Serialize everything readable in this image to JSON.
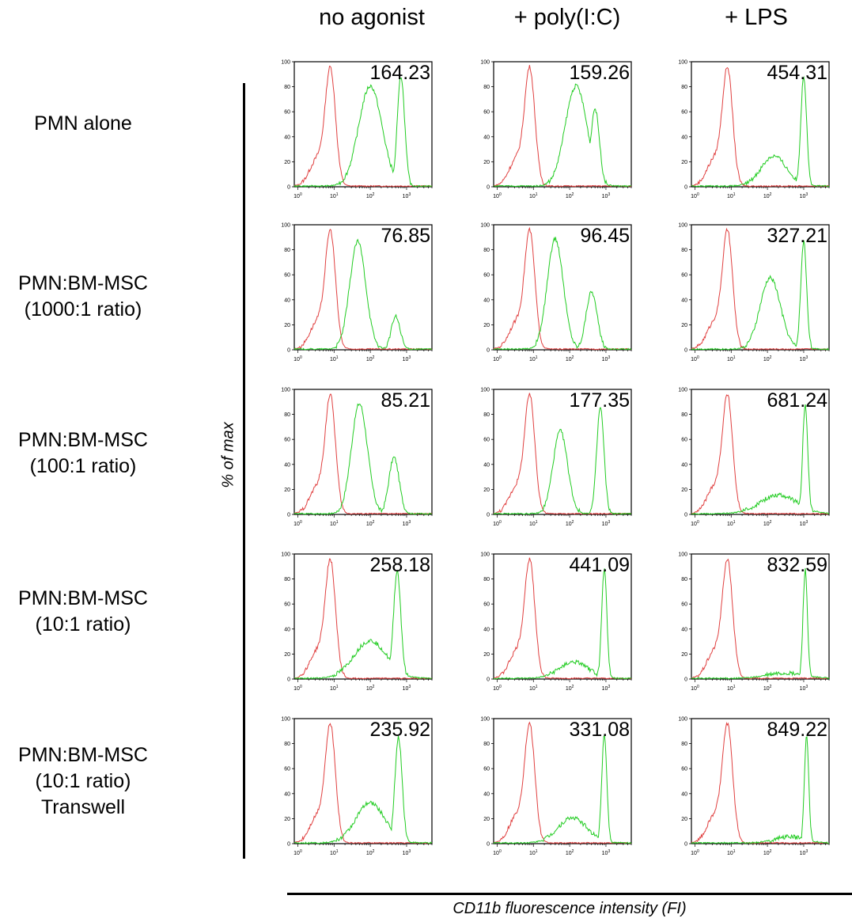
{
  "columns": [
    "no agonist",
    "+ poly(I:C)",
    "+ LPS"
  ],
  "rows": [
    [
      "PMN alone"
    ],
    [
      "PMN:BM-MSC",
      "(1000:1 ratio)"
    ],
    [
      "PMN:BM-MSC",
      "(100:1 ratio)"
    ],
    [
      "PMN:BM-MSC",
      "(10:1 ratio)"
    ],
    [
      "PMN:BM-MSC",
      "(10:1 ratio)",
      "Transwell"
    ]
  ],
  "y_axis_label": "% of max",
  "x_axis_label": "CD11b fluorescence intensity (FI)",
  "colors": {
    "control": "#e04040",
    "stained": "#22cc22",
    "axis": "#000000"
  },
  "chart_data": {
    "type": "line",
    "layout": "5x3 histogram grid",
    "ylim": [
      0,
      100
    ],
    "yticks": [
      0,
      20,
      40,
      60,
      80,
      100
    ],
    "xscale": "log",
    "xlim": [
      0.8,
      5000
    ],
    "xticks": [
      "10^0",
      "10^1",
      "10^2",
      "10^3"
    ],
    "series": [
      {
        "name": "",
        "color": "#e04040"
      },
      {
        "name": "",
        "color": "#22cc22"
      }
    ],
    "panels": [
      {
        "row": 0,
        "col": 0,
        "value": "164.23",
        "control_peak": {
          "x": 8,
          "y": 89
        },
        "stained_peaks": [
          {
            "x": 100,
            "y": 80,
            "w": 0.32
          },
          {
            "x": 700,
            "y": 88,
            "w": 0.1
          }
        ]
      },
      {
        "row": 0,
        "col": 1,
        "value": "159.26",
        "control_peak": {
          "x": 8,
          "y": 89
        },
        "stained_peaks": [
          {
            "x": 150,
            "y": 80,
            "w": 0.3
          },
          {
            "x": 500,
            "y": 62,
            "w": 0.12
          }
        ]
      },
      {
        "row": 0,
        "col": 2,
        "value": "454.31",
        "control_peak": {
          "x": 8,
          "y": 89
        },
        "stained_peaks": [
          {
            "x": 150,
            "y": 24,
            "w": 0.35
          },
          {
            "x": 1000,
            "y": 88,
            "w": 0.08
          }
        ]
      },
      {
        "row": 1,
        "col": 0,
        "value": "76.85",
        "control_peak": {
          "x": 8,
          "y": 89
        },
        "stained_peaks": [
          {
            "x": 45,
            "y": 86,
            "w": 0.22
          },
          {
            "x": 500,
            "y": 26,
            "w": 0.12
          }
        ]
      },
      {
        "row": 1,
        "col": 1,
        "value": "96.45",
        "control_peak": {
          "x": 8,
          "y": 89
        },
        "stained_peaks": [
          {
            "x": 40,
            "y": 88,
            "w": 0.22
          },
          {
            "x": 400,
            "y": 46,
            "w": 0.15
          }
        ]
      },
      {
        "row": 1,
        "col": 2,
        "value": "327.21",
        "control_peak": {
          "x": 8,
          "y": 89
        },
        "stained_peaks": [
          {
            "x": 120,
            "y": 57,
            "w": 0.28
          },
          {
            "x": 1000,
            "y": 86,
            "w": 0.08
          }
        ]
      },
      {
        "row": 2,
        "col": 0,
        "value": "85.21",
        "control_peak": {
          "x": 8,
          "y": 89
        },
        "stained_peaks": [
          {
            "x": 50,
            "y": 88,
            "w": 0.22
          },
          {
            "x": 450,
            "y": 45,
            "w": 0.14
          }
        ]
      },
      {
        "row": 2,
        "col": 1,
        "value": "177.35",
        "control_peak": {
          "x": 8,
          "y": 89
        },
        "stained_peaks": [
          {
            "x": 55,
            "y": 66,
            "w": 0.2
          },
          {
            "x": 700,
            "y": 85,
            "w": 0.1
          }
        ]
      },
      {
        "row": 2,
        "col": 2,
        "value": "681.24",
        "control_peak": {
          "x": 8,
          "y": 89
        },
        "stained_peaks": [
          {
            "x": 200,
            "y": 15,
            "w": 0.5
          },
          {
            "x": 1100,
            "y": 87,
            "w": 0.07
          }
        ]
      },
      {
        "row": 3,
        "col": 0,
        "value": "258.18",
        "control_peak": {
          "x": 8,
          "y": 89
        },
        "stained_peaks": [
          {
            "x": 100,
            "y": 30,
            "w": 0.45
          },
          {
            "x": 550,
            "y": 86,
            "w": 0.1
          }
        ]
      },
      {
        "row": 3,
        "col": 1,
        "value": "441.09",
        "control_peak": {
          "x": 8,
          "y": 89
        },
        "stained_peaks": [
          {
            "x": 130,
            "y": 13,
            "w": 0.4
          },
          {
            "x": 900,
            "y": 88,
            "w": 0.07
          }
        ]
      },
      {
        "row": 3,
        "col": 2,
        "value": "832.59",
        "control_peak": {
          "x": 8,
          "y": 89
        },
        "stained_peaks": [
          {
            "x": 300,
            "y": 4,
            "w": 0.5
          },
          {
            "x": 1100,
            "y": 87,
            "w": 0.06
          }
        ]
      },
      {
        "row": 4,
        "col": 0,
        "value": "235.92",
        "control_peak": {
          "x": 8,
          "y": 89
        },
        "stained_peaks": [
          {
            "x": 100,
            "y": 32,
            "w": 0.4
          },
          {
            "x": 600,
            "y": 84,
            "w": 0.1
          }
        ]
      },
      {
        "row": 4,
        "col": 1,
        "value": "331.08",
        "control_peak": {
          "x": 8,
          "y": 89
        },
        "stained_peaks": [
          {
            "x": 120,
            "y": 20,
            "w": 0.4
          },
          {
            "x": 900,
            "y": 87,
            "w": 0.07
          }
        ]
      },
      {
        "row": 4,
        "col": 2,
        "value": "849.22",
        "control_peak": {
          "x": 8,
          "y": 89
        },
        "stained_peaks": [
          {
            "x": 400,
            "y": 5,
            "w": 0.4
          },
          {
            "x": 1200,
            "y": 86,
            "w": 0.06
          }
        ]
      }
    ]
  }
}
